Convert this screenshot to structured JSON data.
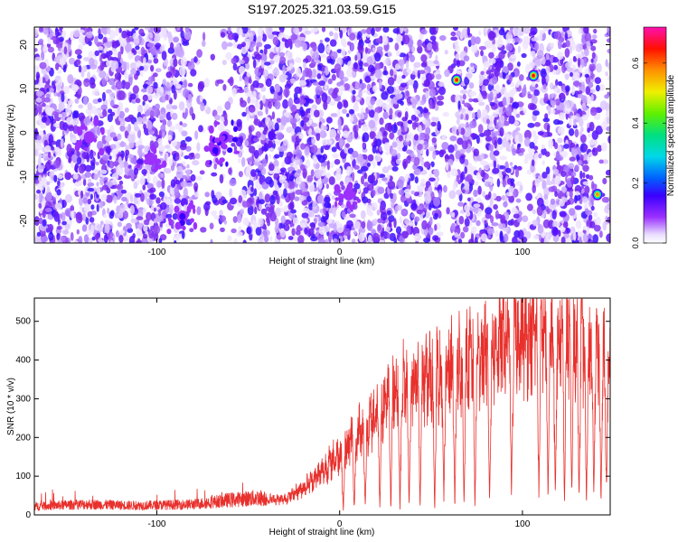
{
  "title": "S197.2025.321.03.59.G15",
  "chart_data": [
    {
      "type": "heatmap",
      "xlabel": "Height of straight line (km)",
      "ylabel": "Frequency (Hz)",
      "xlim": [
        -167,
        148
      ],
      "ylim": [
        -25,
        24
      ],
      "x_ticks": [
        -100,
        0,
        100
      ],
      "y_ticks": [
        -20,
        -10,
        0,
        10,
        20
      ],
      "colorbar": {
        "label": "Normalized spectral amplitude",
        "range": [
          0.0,
          0.72
        ],
        "ticks": [
          0.0,
          0.2,
          0.4,
          0.6
        ],
        "colormap": "rainbow (white-violet-blue-cyan-green-yellow-red-magenta)"
      },
      "hotspots": [
        {
          "x": 64,
          "y": 12,
          "value": 0.66
        },
        {
          "x": 106,
          "y": 13,
          "value": 0.68
        },
        {
          "x": 141,
          "y": -14,
          "value": 0.62
        },
        {
          "x": -68,
          "y": -4,
          "value": 0.25
        },
        {
          "x": -63,
          "y": -1,
          "value": 0.22
        },
        {
          "x": -86,
          "y": -19,
          "value": 0.2
        },
        {
          "x": -137,
          "y": -1,
          "value": 0.18
        },
        {
          "x": 5,
          "y": -14,
          "value": 0.15
        },
        {
          "x": -103,
          "y": -6,
          "value": 0.15
        }
      ]
    },
    {
      "type": "line",
      "xlabel": "Height of straight line (km)",
      "ylabel": "SNR (10 * v/v)",
      "xlim": [
        -167,
        148
      ],
      "ylim": [
        0,
        560
      ],
      "x_ticks": [
        -100,
        0,
        100
      ],
      "y_ticks": [
        0,
        100,
        200,
        300,
        400,
        500
      ],
      "color": "#e8302c",
      "envelope": {
        "x": [
          -167,
          -140,
          -110,
          -80,
          -60,
          -45,
          -30,
          -20,
          -10,
          0,
          10,
          20,
          30,
          40,
          50,
          60,
          70,
          80,
          90,
          100,
          110,
          120,
          130,
          140,
          148
        ],
        "y": [
          20,
          25,
          22,
          25,
          35,
          40,
          40,
          70,
          110,
          160,
          210,
          260,
          330,
          340,
          360,
          380,
          400,
          420,
          450,
          470,
          480,
          470,
          450,
          420,
          400
        ]
      },
      "dips": [
        {
          "x": 2,
          "y": 5
        },
        {
          "x": 8,
          "y": 12
        },
        {
          "x": 14,
          "y": 20
        },
        {
          "x": 22,
          "y": 15
        },
        {
          "x": 28,
          "y": 10
        },
        {
          "x": 33,
          "y": 6
        },
        {
          "x": 38,
          "y": 25
        },
        {
          "x": 44,
          "y": 8
        },
        {
          "x": 52,
          "y": 4
        },
        {
          "x": 57,
          "y": 30
        },
        {
          "x": 63,
          "y": 5
        },
        {
          "x": 68,
          "y": 20
        },
        {
          "x": 74,
          "y": 6
        },
        {
          "x": 82,
          "y": 25
        },
        {
          "x": 94,
          "y": 30
        },
        {
          "x": 109,
          "y": 40
        },
        {
          "x": 114,
          "y": 28
        },
        {
          "x": 118,
          "y": 35
        },
        {
          "x": 123,
          "y": 22
        },
        {
          "x": 127,
          "y": 50
        },
        {
          "x": 131,
          "y": 35
        },
        {
          "x": 135,
          "y": 20
        },
        {
          "x": 139,
          "y": 45
        },
        {
          "x": 143,
          "y": 25
        },
        {
          "x": 146,
          "y": 60
        }
      ]
    }
  ]
}
